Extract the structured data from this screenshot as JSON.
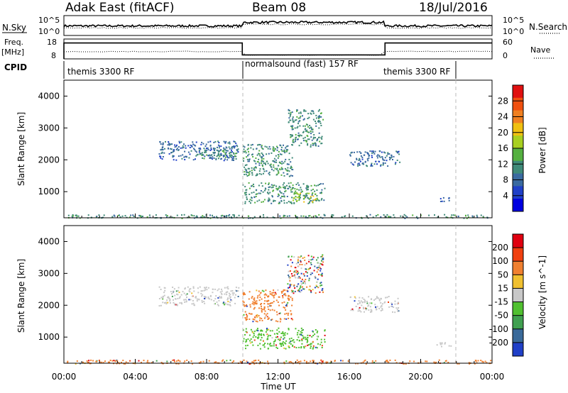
{
  "header": {
    "title": "Adak East (fitACF)",
    "beam": "Beam 08",
    "date": "18/Jul/2016"
  },
  "noise_panel": {
    "left_label": "N.Sky",
    "right_label": "N.Search",
    "tick_top_left": "10^5",
    "tick_bottom_left": "10^0",
    "tick_top_right": "10^5",
    "tick_bottom_right": "10^0"
  },
  "freq_panel": {
    "left_label": "Freq.",
    "left_unit": "[MHz]",
    "right_label": "Nave",
    "left_ticks": [
      "18",
      "8"
    ],
    "right_ticks": [
      "60",
      "0"
    ],
    "freq_steps": [
      {
        "t0": 0,
        "t1": 10,
        "value": 16
      },
      {
        "t0": 10,
        "t1": 18,
        "value": 10
      },
      {
        "t0": 18,
        "t1": 24,
        "value": 16
      }
    ]
  },
  "cpid_panel": {
    "label": "CPID",
    "segments": [
      {
        "label": "themis 3300 RF",
        "start": 0,
        "end": 10
      },
      {
        "label": "normalsound (fast) 157 RF",
        "start": 10,
        "end": 18
      },
      {
        "label": "themis 3300 RF",
        "start": 18,
        "end": 22
      }
    ]
  },
  "chart_data": [
    {
      "type": "heatmap",
      "name": "power",
      "ylabel": "Slant Range [km]",
      "ylim": [
        180,
        4500
      ],
      "yticks": [
        "4000",
        "3000",
        "2000",
        "1000"
      ],
      "ytick_values": [
        4000,
        3000,
        2000,
        1000
      ],
      "xlim": [
        0,
        24
      ],
      "colorbar_label": "Power [dB]",
      "colorbar_ticks": [
        "28",
        "24",
        "20",
        "16",
        "12",
        "8",
        "4"
      ],
      "colorbar_values": [
        28,
        24,
        20,
        16,
        12,
        8,
        4
      ],
      "colorbar_range": [
        0,
        32
      ],
      "colorbar_colors": [
        "#0000e0",
        "#2040c8",
        "#3a6aa0",
        "#3f8a78",
        "#55b040",
        "#a8d020",
        "#f0c010",
        "#f08020",
        "#f05010",
        "#e01010"
      ],
      "regions": [
        {
          "t0": 5.3,
          "t1": 9.8,
          "r0": 2000,
          "r1": 2600,
          "level": 7
        },
        {
          "t0": 7.5,
          "t1": 9.8,
          "r0": 2050,
          "r1": 2350,
          "level": 11
        },
        {
          "t0": 10.0,
          "t1": 12.8,
          "r0": 1500,
          "r1": 2500,
          "level": 11
        },
        {
          "t0": 12.5,
          "t1": 14.5,
          "r0": 2400,
          "r1": 3600,
          "level": 9
        },
        {
          "t0": 10.0,
          "t1": 14.6,
          "r0": 650,
          "r1": 1300,
          "level": 10
        },
        {
          "t0": 12.8,
          "t1": 14.2,
          "r0": 700,
          "r1": 1000,
          "level": 15
        },
        {
          "t0": 16.0,
          "t1": 18.8,
          "r0": 1800,
          "r1": 2300,
          "level": 7
        },
        {
          "t0": 20.8,
          "t1": 21.7,
          "r0": 700,
          "r1": 850,
          "level": 6
        },
        {
          "t0": 0.0,
          "t1": 24.0,
          "r0": 180,
          "r1": 300,
          "level": 8
        }
      ]
    },
    {
      "type": "heatmap",
      "name": "velocity",
      "ylabel": "Slant Range [km]",
      "ylim": [
        180,
        4500
      ],
      "yticks": [
        "4000",
        "3000",
        "2000",
        "1000"
      ],
      "ytick_values": [
        4000,
        3000,
        2000,
        1000
      ],
      "xlim": [
        0,
        24
      ],
      "xlabel": "Time UT",
      "xticks": [
        "00:00",
        "04:00",
        "08:00",
        "12:00",
        "16:00",
        "20:00",
        "00:00"
      ],
      "xtick_values": [
        0,
        4,
        8,
        12,
        16,
        20,
        24
      ],
      "colorbar_label": "Velocity [m s^-1]",
      "colorbar_ticks": [
        "200",
        "100",
        "50",
        "15",
        "-15",
        "-50",
        "-100",
        "-200"
      ],
      "colorbar_colors": [
        "#e00010",
        "#f04010",
        "#f08030",
        "#f0c030",
        "#c8c8c8",
        "#50c030",
        "#40a050",
        "#3a6a9a",
        "#2040c8"
      ],
      "regions": [
        {
          "t0": 5.3,
          "t1": 9.8,
          "r0": 2000,
          "r1": 2600,
          "vel": "gray"
        },
        {
          "t0": 10.0,
          "t1": 12.8,
          "r0": 1500,
          "r1": 2500,
          "vel": "orange"
        },
        {
          "t0": 12.5,
          "t1": 14.5,
          "r0": 2400,
          "r1": 3600,
          "vel": "mixed"
        },
        {
          "t0": 10.0,
          "t1": 14.6,
          "r0": 650,
          "r1": 1300,
          "vel": "green"
        },
        {
          "t0": 16.0,
          "t1": 18.8,
          "r0": 1800,
          "r1": 2300,
          "vel": "gray"
        },
        {
          "t0": 20.8,
          "t1": 21.7,
          "r0": 700,
          "r1": 850,
          "vel": "gray"
        },
        {
          "t0": 0.0,
          "t1": 24.0,
          "r0": 180,
          "r1": 300,
          "vel": "orange"
        }
      ]
    }
  ]
}
